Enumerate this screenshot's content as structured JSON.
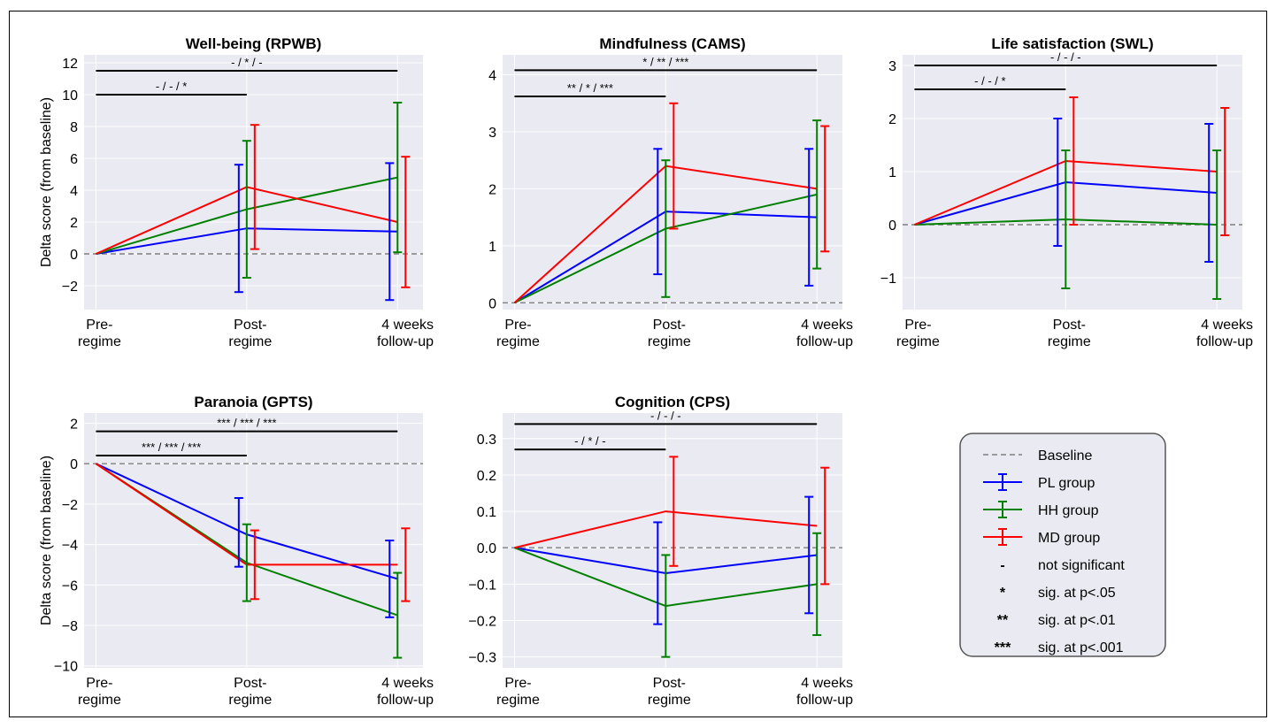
{
  "colors": {
    "panel_bg": "#EAEAF2",
    "grid": "#FFFFFF",
    "baseline": "#808080",
    "PL": "#0000FF",
    "HH": "#008000",
    "MD": "#FF0000",
    "legend_bg": "#EAEAF2",
    "legend_border": "#555555"
  },
  "x_tick_labels": [
    [
      "Pre-",
      "regime"
    ],
    [
      "Post-",
      "regime"
    ],
    [
      "4 weeks",
      "follow-up"
    ]
  ],
  "legend": {
    "baseline": "Baseline",
    "pl": "PL group",
    "hh": "HH group",
    "md": "MD group",
    "ns_symbol": "-",
    "ns_text": "not significant",
    "s1_symbol": "*",
    "s1_text": "sig. at p<.05",
    "s2_symbol": "**",
    "s2_text": "sig. at p<.01",
    "s3_symbol": "***",
    "s3_text": "sig. at p<.001"
  },
  "chart_data": [
    {
      "type": "line",
      "title": "Well-being (RPWB)",
      "ylabel": "Delta score (from baseline)",
      "ylim": [
        -3.5,
        12.5
      ],
      "yticks": [
        -2,
        0,
        2,
        4,
        6,
        8,
        10,
        12
      ],
      "ytick_labels": [
        "−2",
        "0",
        "2",
        "4",
        "6",
        "8",
        "10",
        "12"
      ],
      "series": [
        {
          "name": "PL group",
          "key": "PL",
          "values": [
            0,
            1.6,
            1.4
          ],
          "err_low": [
            null,
            -2.4,
            -2.9
          ],
          "err_high": [
            null,
            5.6,
            5.7
          ]
        },
        {
          "name": "HH group",
          "key": "HH",
          "values": [
            0,
            2.8,
            4.8
          ],
          "err_low": [
            null,
            -1.5,
            0.1
          ],
          "err_high": [
            null,
            7.1,
            9.5
          ]
        },
        {
          "name": "MD group",
          "key": "MD",
          "values": [
            0,
            4.2,
            2.0
          ],
          "err_low": [
            null,
            0.3,
            -2.1
          ],
          "err_high": [
            null,
            8.1,
            6.1
          ]
        }
      ],
      "sig_bars": [
        {
          "from": 0,
          "to": 2,
          "y": 11.5,
          "label": "- / * / -"
        },
        {
          "from": 0,
          "to": 1,
          "y": 10.0,
          "label": "- / - / *"
        }
      ]
    },
    {
      "type": "line",
      "title": "Mindfulness (CAMS)",
      "ylabel": "",
      "ylim": [
        -0.12,
        4.35
      ],
      "yticks": [
        0,
        1,
        2,
        3,
        4
      ],
      "ytick_labels": [
        "0",
        "1",
        "2",
        "3",
        "4"
      ],
      "series": [
        {
          "name": "PL group",
          "key": "PL",
          "values": [
            0,
            1.6,
            1.5
          ],
          "err_low": [
            null,
            0.5,
            0.3
          ],
          "err_high": [
            null,
            2.7,
            2.7
          ]
        },
        {
          "name": "HH group",
          "key": "HH",
          "values": [
            0,
            1.3,
            1.9
          ],
          "err_low": [
            null,
            0.1,
            0.6
          ],
          "err_high": [
            null,
            2.5,
            3.2
          ]
        },
        {
          "name": "MD group",
          "key": "MD",
          "values": [
            0,
            2.4,
            2.0
          ],
          "err_low": [
            null,
            1.3,
            0.9
          ],
          "err_high": [
            null,
            3.5,
            3.1
          ]
        }
      ],
      "sig_bars": [
        {
          "from": 0,
          "to": 2,
          "y": 4.08,
          "label": "* / ** / ***"
        },
        {
          "from": 0,
          "to": 1,
          "y": 3.62,
          "label": "** / * / ***"
        }
      ]
    },
    {
      "type": "line",
      "title": "Life satisfaction (SWL)",
      "ylabel": "",
      "ylim": [
        -1.6,
        3.2
      ],
      "yticks": [
        -1,
        0,
        1,
        2,
        3
      ],
      "ytick_labels": [
        "−1",
        "0",
        "1",
        "2",
        "3"
      ],
      "series": [
        {
          "name": "PL group",
          "key": "PL",
          "values": [
            0,
            0.8,
            0.6
          ],
          "err_low": [
            null,
            -0.4,
            -0.7
          ],
          "err_high": [
            null,
            2.0,
            1.9
          ]
        },
        {
          "name": "HH group",
          "key": "HH",
          "values": [
            0,
            0.1,
            0.0
          ],
          "err_low": [
            null,
            -1.2,
            -1.4
          ],
          "err_high": [
            null,
            1.4,
            1.4
          ]
        },
        {
          "name": "MD group",
          "key": "MD",
          "values": [
            0,
            1.2,
            1.0
          ],
          "err_low": [
            null,
            0.0,
            -0.2
          ],
          "err_high": [
            null,
            2.4,
            2.2
          ]
        }
      ],
      "sig_bars": [
        {
          "from": 0,
          "to": 2,
          "y": 3.0,
          "label": "- / - / -"
        },
        {
          "from": 0,
          "to": 1,
          "y": 2.55,
          "label": "- / - / *"
        }
      ]
    },
    {
      "type": "line",
      "title": "Paranoia (GPTS)",
      "ylabel": "Delta score (from baseline)",
      "ylim": [
        -10.1,
        2.5
      ],
      "yticks": [
        -10,
        -8,
        -6,
        -4,
        -2,
        0,
        2
      ],
      "ytick_labels": [
        "−10",
        "−8",
        "−6",
        "−4",
        "−2",
        "0",
        "2"
      ],
      "series": [
        {
          "name": "PL group",
          "key": "PL",
          "values": [
            0,
            -3.5,
            -5.7
          ],
          "err_low": [
            null,
            -5.1,
            -7.6
          ],
          "err_high": [
            null,
            -1.7,
            -3.8
          ]
        },
        {
          "name": "HH group",
          "key": "HH",
          "values": [
            0,
            -4.9,
            -7.5
          ],
          "err_low": [
            null,
            -6.8,
            -9.6
          ],
          "err_high": [
            null,
            -3.0,
            -5.4
          ]
        },
        {
          "name": "MD group",
          "key": "MD",
          "values": [
            0,
            -5.0,
            -5.0
          ],
          "err_low": [
            null,
            -6.7,
            -6.8
          ],
          "err_high": [
            null,
            -3.3,
            -3.2
          ]
        }
      ],
      "sig_bars": [
        {
          "from": 0,
          "to": 2,
          "y": 1.6,
          "label": "*** / *** / ***"
        },
        {
          "from": 0,
          "to": 1,
          "y": 0.4,
          "label": "*** / *** / ***"
        }
      ]
    },
    {
      "type": "line",
      "title": "Cognition (CPS)",
      "ylabel": "",
      "ylim": [
        -0.33,
        0.37
      ],
      "yticks": [
        -0.3,
        -0.2,
        -0.1,
        0.0,
        0.1,
        0.2,
        0.3
      ],
      "ytick_labels": [
        "−0.3",
        "−0.2",
        "−0.1",
        "0.0",
        "0.1",
        "0.2",
        "0.3"
      ],
      "series": [
        {
          "name": "PL group",
          "key": "PL",
          "values": [
            0,
            -0.07,
            -0.02
          ],
          "err_low": [
            null,
            -0.21,
            -0.18
          ],
          "err_high": [
            null,
            0.07,
            0.14
          ]
        },
        {
          "name": "HH group",
          "key": "HH",
          "values": [
            0,
            -0.16,
            -0.1
          ],
          "err_low": [
            null,
            -0.3,
            -0.24
          ],
          "err_high": [
            null,
            -0.02,
            0.04
          ]
        },
        {
          "name": "MD group",
          "key": "MD",
          "values": [
            0,
            0.1,
            0.06
          ],
          "err_low": [
            null,
            -0.05,
            -0.1
          ],
          "err_high": [
            null,
            0.25,
            0.22
          ]
        }
      ],
      "sig_bars": [
        {
          "from": 0,
          "to": 2,
          "y": 0.34,
          "label": "- / - / -"
        },
        {
          "from": 0,
          "to": 1,
          "y": 0.27,
          "label": "- / * / -"
        }
      ]
    }
  ]
}
